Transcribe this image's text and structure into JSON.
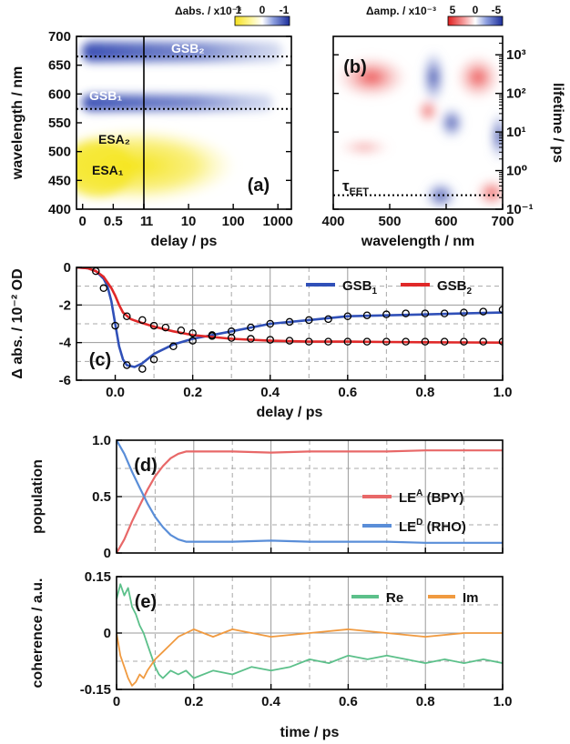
{
  "chart_data": [
    {
      "id": "a",
      "type": "heatmap",
      "panel_label": "(a)",
      "xlabel": "delay / ps",
      "ylabel": "wavelength / nm",
      "colorbar_label": "Δabs. / x10⁻³",
      "colorbar_ticks": [
        "1",
        "0",
        "-1"
      ],
      "x_ticks_linear": [
        "0",
        "0.5",
        "1"
      ],
      "x_ticks_log": [
        "1",
        "10",
        "100",
        "1000"
      ],
      "y_ticks": [
        "400",
        "450",
        "500",
        "550",
        "600",
        "650",
        "700"
      ],
      "ylim": [
        400,
        700
      ],
      "x_linear_range": [
        -0.1,
        1
      ],
      "x_log_range": [
        1,
        2000
      ],
      "dotted_lines_nm": [
        665,
        574
      ],
      "annotations": [
        {
          "text": "GSB₂",
          "wavelength": 670
        },
        {
          "text": "GSB₁",
          "wavelength": 584
        },
        {
          "text": "ESA₂",
          "wavelength": 493
        },
        {
          "text": "ESA₁",
          "wavelength": 452
        }
      ],
      "features": [
        {
          "name": "GSB2",
          "sign": "negative",
          "center_nm": 665,
          "width_nm": 20,
          "color": "#2f45b0"
        },
        {
          "name": "GSB1",
          "sign": "negative",
          "center_nm": 580,
          "width_nm": 20,
          "color": "#2f45b0"
        },
        {
          "name": "ESA",
          "sign": "positive",
          "center_nm": 470,
          "width_nm": 55,
          "color": "#f5ee22"
        }
      ]
    },
    {
      "id": "b",
      "type": "heatmap",
      "panel_label": "(b)",
      "xlabel": "wavelength / nm",
      "ylabel": "lifetime / ps",
      "colorbar_label": "Δamp. / x10⁻³",
      "colorbar_ticks": [
        "5",
        "0",
        "-5"
      ],
      "x_ticks": [
        "400",
        "500",
        "600",
        "700"
      ],
      "xlim": [
        400,
        700
      ],
      "y_ticks": [
        "10⁻¹",
        "10⁰",
        "10¹",
        "10²",
        "10³"
      ],
      "y_log_range": [
        0.1,
        3000
      ],
      "dotted_line_lifetime_ps": 0.23,
      "annotation": "τ_EET",
      "annotation_text": "τ",
      "annotation_sub": "EET"
    },
    {
      "id": "c",
      "type": "line",
      "panel_label": "(c)",
      "xlabel": "delay / ps",
      "ylabel": "Δ abs. / 10⁻² OD",
      "xlim": [
        -0.1,
        1.0
      ],
      "ylim": [
        -6,
        0
      ],
      "x_ticks": [
        "0.0",
        "0.2",
        "0.4",
        "0.6",
        "0.8",
        "1.0"
      ],
      "y_ticks": [
        "0",
        "-2",
        "-4",
        "-6"
      ],
      "legend": "top-right",
      "series": [
        {
          "name": "GSB₁",
          "name_main": "GSB",
          "name_sub": "1",
          "color": "#3050b8",
          "x": [
            -0.1,
            -0.07,
            -0.05,
            -0.03,
            -0.02,
            -0.01,
            0.0,
            0.01,
            0.02,
            0.03,
            0.05,
            0.07,
            0.1,
            0.15,
            0.2,
            0.3,
            0.4,
            0.5,
            0.6,
            0.7,
            0.8,
            0.9,
            1.0
          ],
          "y": [
            0.0,
            -0.05,
            -0.2,
            -0.6,
            -1.0,
            -1.8,
            -3.0,
            -4.2,
            -4.9,
            -5.2,
            -5.3,
            -5.1,
            -4.6,
            -4.1,
            -3.8,
            -3.4,
            -3.0,
            -2.8,
            -2.6,
            -2.55,
            -2.5,
            -2.45,
            -2.4
          ]
        },
        {
          "name": "GSB₂",
          "name_main": "GSB",
          "name_sub": "2",
          "color": "#e02828",
          "x": [
            -0.1,
            -0.07,
            -0.05,
            -0.03,
            -0.02,
            -0.01,
            0.0,
            0.01,
            0.02,
            0.04,
            0.06,
            0.1,
            0.15,
            0.2,
            0.3,
            0.4,
            0.5,
            0.6,
            0.7,
            0.8,
            0.9,
            1.0
          ],
          "y": [
            0.0,
            -0.05,
            -0.2,
            -0.5,
            -0.8,
            -1.1,
            -1.5,
            -2.0,
            -2.4,
            -2.75,
            -2.9,
            -3.15,
            -3.4,
            -3.6,
            -3.8,
            -3.9,
            -3.95,
            -3.95,
            -3.97,
            -3.98,
            -3.99,
            -4.0
          ]
        }
      ],
      "markers_series_1": {
        "x": [
          -0.05,
          -0.03,
          0.0,
          0.03,
          0.07,
          0.1,
          0.15,
          0.2,
          0.25,
          0.3,
          0.35,
          0.4,
          0.45,
          0.5,
          0.55,
          0.6,
          0.65,
          0.7,
          0.75,
          0.8,
          0.85,
          0.9,
          0.95,
          1.0
        ],
        "y": [
          -0.2,
          -1.1,
          -3.1,
          -5.2,
          -5.4,
          -4.9,
          -4.2,
          -3.9,
          -3.6,
          -3.4,
          -3.2,
          -3.0,
          -2.9,
          -2.8,
          -2.75,
          -2.6,
          -2.55,
          -2.5,
          -2.45,
          -2.45,
          -2.45,
          -2.4,
          -2.35,
          -2.25
        ]
      },
      "markers_series_2": {
        "x": [
          0.03,
          0.07,
          0.1,
          0.13,
          0.17,
          0.2,
          0.25,
          0.3,
          0.35,
          0.4,
          0.45,
          0.5,
          0.55,
          0.6,
          0.65,
          0.7,
          0.75,
          0.8,
          0.85,
          0.9,
          0.95,
          1.0
        ],
        "y": [
          -2.6,
          -2.8,
          -3.1,
          -3.2,
          -3.35,
          -3.5,
          -3.65,
          -3.75,
          -3.8,
          -3.85,
          -3.9,
          -3.95,
          -3.95,
          -3.95,
          -3.95,
          -3.95,
          -3.95,
          -3.95,
          -3.95,
          -3.95,
          -3.95,
          -3.95
        ]
      }
    },
    {
      "id": "d",
      "type": "line",
      "panel_label": "(d)",
      "ylabel": "population",
      "xlim": [
        0,
        1.0
      ],
      "ylim": [
        0,
        1.0
      ],
      "y_ticks": [
        "0",
        "0.5",
        "1.0"
      ],
      "legend": "right",
      "series": [
        {
          "name": "LEᴬ (BPY)",
          "name_main": "LE",
          "name_sup": "A",
          "name_rest": " (BPY)",
          "color": "#e86868",
          "x": [
            0.0,
            0.02,
            0.04,
            0.06,
            0.08,
            0.1,
            0.12,
            0.14,
            0.16,
            0.18,
            0.2,
            0.3,
            0.4,
            0.5,
            0.6,
            0.7,
            0.8,
            0.9,
            1.0
          ],
          "y": [
            0.0,
            0.12,
            0.28,
            0.42,
            0.56,
            0.68,
            0.77,
            0.84,
            0.88,
            0.9,
            0.9,
            0.9,
            0.89,
            0.9,
            0.9,
            0.9,
            0.91,
            0.91,
            0.91
          ]
        },
        {
          "name": "LEᴰ (RHO)",
          "name_main": "LE",
          "name_sup": "D",
          "name_rest": " (RHO)",
          "color": "#5a8ed8",
          "x": [
            0.0,
            0.02,
            0.04,
            0.06,
            0.08,
            0.1,
            0.12,
            0.14,
            0.16,
            0.18,
            0.2,
            0.3,
            0.4,
            0.5,
            0.6,
            0.7,
            0.8,
            0.9,
            1.0
          ],
          "y": [
            1.0,
            0.88,
            0.72,
            0.58,
            0.44,
            0.32,
            0.23,
            0.16,
            0.12,
            0.1,
            0.1,
            0.1,
            0.11,
            0.1,
            0.1,
            0.1,
            0.09,
            0.09,
            0.09
          ]
        }
      ]
    },
    {
      "id": "e",
      "type": "line",
      "panel_label": "(e)",
      "xlabel": "time / ps",
      "ylabel": "coherence / a.u.",
      "xlim": [
        0,
        1.0
      ],
      "ylim": [
        -0.15,
        0.15
      ],
      "x_ticks": [
        "0",
        "0.2",
        "0.4",
        "0.6",
        "0.8",
        "1.0"
      ],
      "y_ticks": [
        "0.15",
        "0",
        "-0.15"
      ],
      "legend": "top-right",
      "series": [
        {
          "name": "Re",
          "color": "#5cc08a",
          "x": [
            0.0,
            0.01,
            0.02,
            0.03,
            0.04,
            0.05,
            0.06,
            0.07,
            0.08,
            0.09,
            0.1,
            0.11,
            0.12,
            0.14,
            0.16,
            0.18,
            0.2,
            0.25,
            0.3,
            0.35,
            0.4,
            0.45,
            0.5,
            0.55,
            0.6,
            0.65,
            0.7,
            0.75,
            0.8,
            0.85,
            0.9,
            0.95,
            1.0
          ],
          "y": [
            0.09,
            0.13,
            0.1,
            0.12,
            0.07,
            0.05,
            0.02,
            0.0,
            -0.03,
            -0.06,
            -0.09,
            -0.11,
            -0.12,
            -0.1,
            -0.11,
            -0.1,
            -0.12,
            -0.1,
            -0.11,
            -0.09,
            -0.1,
            -0.09,
            -0.07,
            -0.08,
            -0.06,
            -0.07,
            -0.06,
            -0.07,
            -0.08,
            -0.07,
            -0.08,
            -0.07,
            -0.08
          ]
        },
        {
          "name": "Im",
          "color": "#f09a40",
          "x": [
            0.0,
            0.01,
            0.02,
            0.03,
            0.04,
            0.05,
            0.06,
            0.07,
            0.08,
            0.1,
            0.12,
            0.14,
            0.16,
            0.18,
            0.2,
            0.25,
            0.3,
            0.35,
            0.4,
            0.5,
            0.6,
            0.7,
            0.8,
            0.9,
            1.0
          ],
          "y": [
            0.0,
            -0.06,
            -0.09,
            -0.12,
            -0.14,
            -0.13,
            -0.11,
            -0.12,
            -0.1,
            -0.07,
            -0.05,
            -0.03,
            -0.01,
            0.0,
            0.01,
            -0.01,
            0.01,
            0.0,
            -0.01,
            0.0,
            0.01,
            0.0,
            -0.01,
            0.0,
            0.0
          ]
        }
      ]
    }
  ]
}
